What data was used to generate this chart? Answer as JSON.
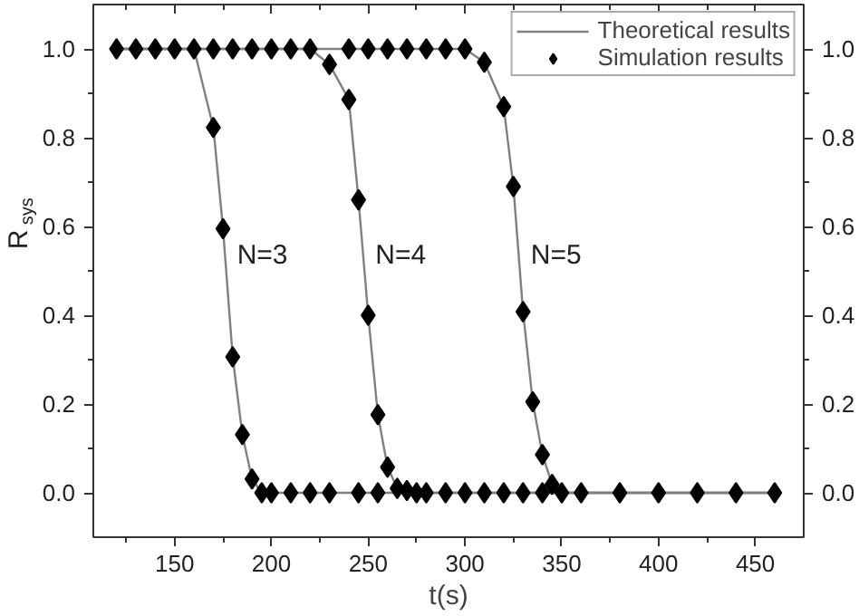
{
  "chart_data": {
    "type": "scatter",
    "xlabel": "t(s)",
    "ylabel": "R$_{sys}$",
    "xlim": [
      108,
      475
    ],
    "ylim": [
      -0.1,
      1.1
    ],
    "y2lim": [
      -0.1,
      1.1
    ],
    "xticks": [
      {
        "value": 125,
        "label": null
      },
      150,
      {
        "value": 175,
        "label": null
      },
      200,
      {
        "value": 225,
        "label": null
      },
      250,
      {
        "value": 275,
        "label": null
      },
      300,
      {
        "value": 325,
        "label": null
      },
      350,
      {
        "value": 375,
        "label": null
      },
      400,
      {
        "value": 425,
        "label": null
      },
      450
    ],
    "yticks": [
      {
        "value": 0,
        "label": "0.0"
      },
      {
        "value": 0.1,
        "label": null
      },
      0.2,
      {
        "value": 0.3,
        "label": null
      },
      0.4,
      {
        "value": 0.5,
        "label": null
      },
      0.6,
      {
        "value": 0.7,
        "label": null
      },
      0.8,
      {
        "value": 0.9,
        "label": null
      },
      {
        "value": 1,
        "label": "1.0"
      }
    ],
    "y2ticks": [
      {
        "value": 0,
        "label": "0.0"
      },
      {
        "value": 0.1,
        "label": null
      },
      0.2,
      {
        "value": 0.3,
        "label": null
      },
      0.4,
      {
        "value": 0.5,
        "label": null
      },
      0.6,
      {
        "value": 0.7,
        "label": null
      },
      0.8,
      {
        "value": 0.9,
        "label": null
      },
      {
        "value": 1,
        "label": "1.0"
      }
    ],
    "legend": "top right",
    "grid": false,
    "series": [
      {
        "name": "Theoretical results",
        "type": "line",
        "color": "#808080",
        "marker": "none",
        "line_style": "solid",
        "x": [
          120,
          160,
          170,
          175,
          180,
          185,
          190,
          195,
          200,
          460
        ],
        "values": [
          1,
          1,
          0.823,
          0.595,
          0.306,
          0.131,
          0.031,
          0,
          0,
          0
        ]
      },
      {
        "type": "line",
        "color": "#808080",
        "marker": "none",
        "line_style": "solid",
        "x": [
          120,
          220,
          230,
          240,
          245,
          250,
          255,
          260,
          265,
          270,
          275,
          460
        ],
        "values": [
          1,
          1,
          0.965,
          0.886,
          0.66,
          0.4,
          0.176,
          0.058,
          0.01,
          0.005,
          0,
          0
        ]
      },
      {
        "type": "line",
        "color": "#808080",
        "marker": "none",
        "line_style": "solid",
        "x": [
          120,
          300,
          310,
          320,
          325,
          330,
          335,
          340,
          345,
          350,
          460
        ],
        "values": [
          1,
          1,
          0.97,
          0.87,
          0.69,
          0.408,
          0.205,
          0.086,
          0.019,
          0,
          0
        ]
      },
      {
        "name": "Simulation results",
        "color": "#000000",
        "marker": "diamond",
        "x": [
          120,
          130,
          140,
          150,
          160,
          170,
          180,
          190,
          200,
          210,
          220,
          240,
          250,
          260,
          270,
          280,
          290,
          300,
          170,
          175,
          180,
          185,
          190,
          195,
          200,
          210,
          220,
          230,
          245,
          255,
          230,
          240,
          245,
          250,
          255,
          260,
          265,
          270,
          275,
          280,
          290,
          300,
          310,
          320,
          325,
          330,
          335,
          340,
          345,
          350,
          360,
          380,
          400,
          420,
          440,
          460,
          310,
          320,
          330,
          340
        ],
        "values": [
          1,
          1,
          1,
          1,
          1,
          1,
          1,
          1,
          1,
          1,
          1,
          1,
          1,
          1,
          1,
          1,
          1,
          1,
          0.823,
          0.595,
          0.306,
          0.131,
          0.031,
          0,
          0,
          0,
          0,
          0,
          0,
          0,
          0.965,
          0.886,
          0.66,
          0.4,
          0.176,
          0.058,
          0.01,
          0.005,
          0,
          0,
          0,
          0,
          0.97,
          0.87,
          0.69,
          0.408,
          0.205,
          0.086,
          0.019,
          0,
          0,
          0,
          0,
          0,
          0,
          0,
          0,
          0,
          0,
          0
        ]
      }
    ],
    "annotations": [
      "N=3",
      "N=4",
      "N=5"
    ]
  }
}
